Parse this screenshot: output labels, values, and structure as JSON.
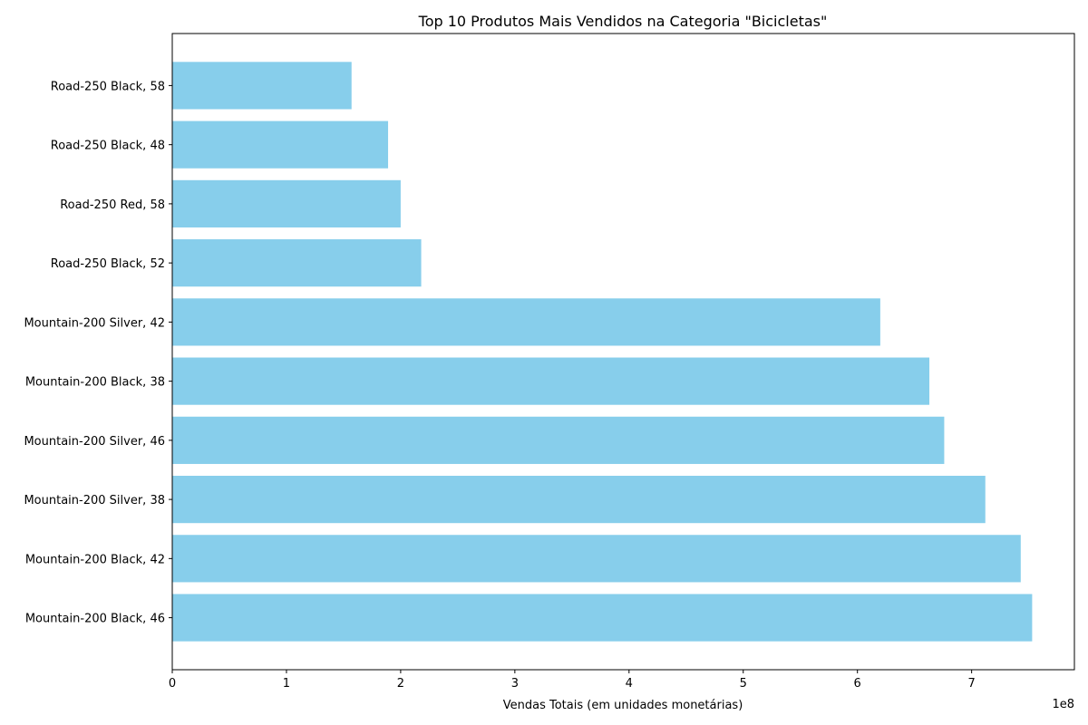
{
  "chart_data": {
    "type": "bar",
    "orientation": "horizontal",
    "title": "Top 10 Produtos Mais Vendidos na Categoria \"Bicicletas\"",
    "xlabel": "Vendas Totais (em unidades monetárias)",
    "ylabel": "",
    "x_offset_label": "1e8",
    "categories": [
      "Mountain-200 Black, 46",
      "Mountain-200 Black, 42",
      "Mountain-200 Silver, 38",
      "Mountain-200 Silver, 46",
      "Mountain-200 Black, 38",
      "Mountain-200 Silver, 42",
      "Road-250 Black, 52",
      "Road-250 Red, 58",
      "Road-250 Black, 48",
      "Road-250 Black, 58"
    ],
    "values": [
      753000000,
      743000000,
      712000000,
      676000000,
      663000000,
      620000000,
      218000000,
      200000000,
      189000000,
      157000000
    ],
    "x_ticks": [
      "0",
      "1",
      "2",
      "3",
      "4",
      "5",
      "6",
      "7"
    ],
    "xlim": [
      0,
      790000000
    ],
    "grid": false,
    "bar_color": "#87CEEB"
  }
}
